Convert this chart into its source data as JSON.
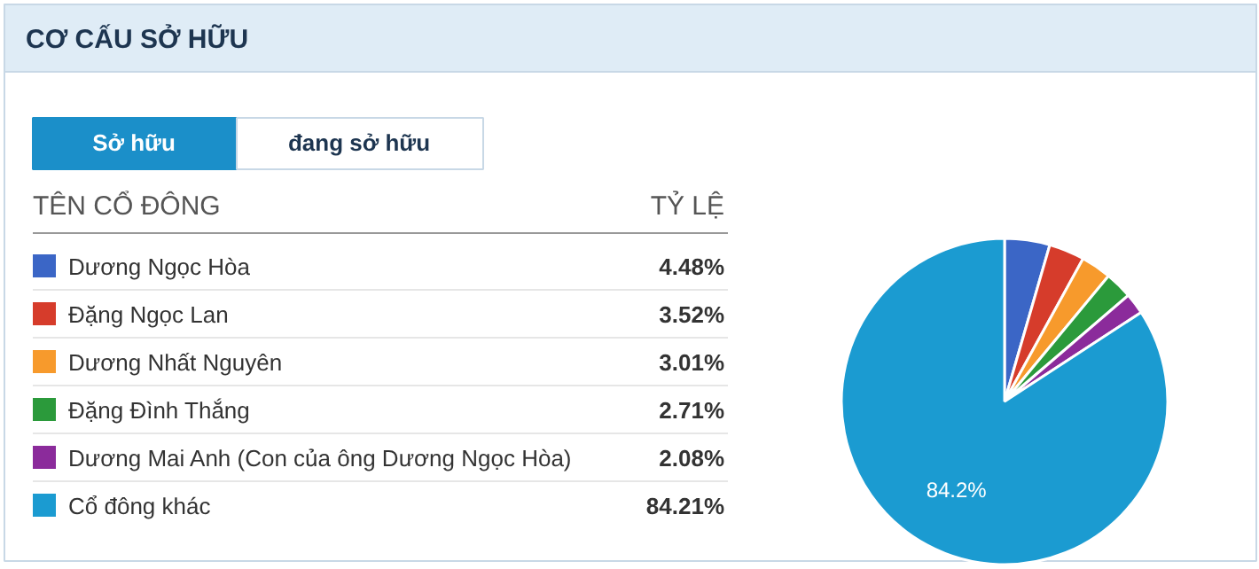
{
  "chart_data": {
    "type": "pie",
    "title": "CƠ CẤU SỞ HỮU",
    "annotations": [
      "Sở hữu",
      "đang sở hữu",
      "TÊN CỔ ĐÔNG",
      "TỶ LỆ",
      {
        "text": "84.2%",
        "x": "Cổ đông khác"
      }
    ],
    "categories": [
      "Dương Ngọc Hòa",
      "Đặng Ngọc Lan",
      "Dương Nhất Nguyên",
      "Đặng Đình Thắng",
      "Dương Mai Anh (Con của ông Dương Ngọc Hòa)",
      "Cổ đông khác"
    ],
    "values": [
      4.48,
      3.52,
      3.01,
      2.71,
      2.08,
      84.21
    ],
    "colors": [
      "#3b66c6",
      "#d63c2b",
      "#f79a2c",
      "#2b9a3b",
      "#8b2b9b",
      "#1b9bd1"
    ],
    "legend": "left",
    "value_labels": [
      "4.48%",
      "3.52%",
      "3.01%",
      "2.71%",
      "2.08%",
      "84.21%"
    ]
  }
}
